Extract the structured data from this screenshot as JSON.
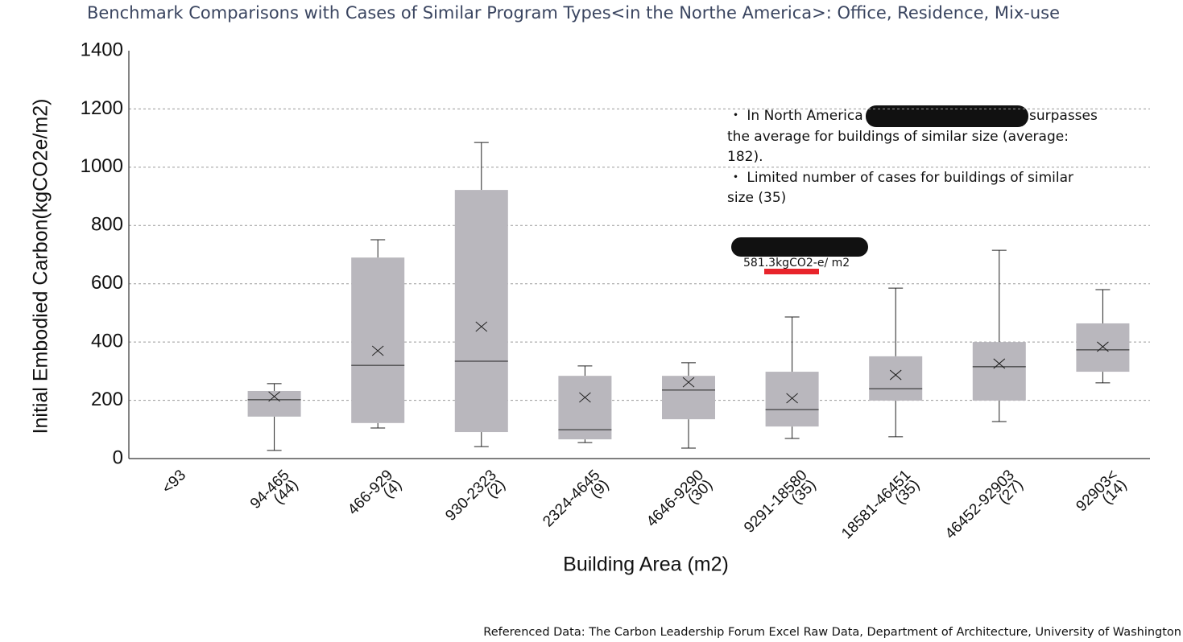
{
  "chart_data": {
    "type": "box",
    "title": "Benchmark Comparisons with Cases of Similar Program Types<in the Northe America>: Office, Residence, Mix-use",
    "x_label": "Building Area (m2)",
    "y_label": "Initial Embodied Carbon(kgCO2e/m2)",
    "categories": [
      "<93",
      "94-465",
      "466-929",
      "930-2323",
      "2324-4645",
      "4646-9290",
      "9291-18580",
      "18581-46451",
      "46452-92903",
      "92903<"
    ],
    "case_counts": [
      null,
      44,
      4,
      2,
      9,
      30,
      35,
      35,
      27,
      14
    ],
    "case_count_labels": [
      null,
      "(44)",
      "(4)",
      "(2)",
      "(9)",
      "(30)",
      "(35)",
      "(35)",
      "(27)",
      "(14)"
    ],
    "boxes": [
      null,
      {
        "min": 28,
        "q1": 144,
        "median": 202,
        "q3": 232,
        "max": 257,
        "mean": 213
      },
      {
        "min": 105,
        "q1": 122,
        "median": 320,
        "q3": 690,
        "max": 751,
        "mean": 370
      },
      {
        "min": 41,
        "q1": 91,
        "median": 334,
        "q3": 922,
        "max": 1085,
        "mean": 453
      },
      {
        "min": 55,
        "q1": 66,
        "median": 99,
        "q3": 284,
        "max": 318,
        "mean": 210
      },
      {
        "min": 36,
        "q1": 135,
        "median": 235,
        "q3": 284,
        "max": 329,
        "mean": 262
      },
      {
        "min": 69,
        "q1": 110,
        "median": 168,
        "q3": 298,
        "max": 486,
        "mean": 207
      },
      {
        "min": 75,
        "q1": 199,
        "median": 240,
        "q3": 351,
        "max": 585,
        "mean": 287
      },
      {
        "min": 127,
        "q1": 199,
        "median": 315,
        "q3": 400,
        "max": 715,
        "mean": 326
      },
      {
        "min": 260,
        "q1": 298,
        "median": 373,
        "q3": 464,
        "max": 580,
        "mean": 384
      }
    ],
    "color": "#b9b7bd",
    "ylim": [
      0,
      1400
    ],
    "yticks": [
      0,
      200,
      400,
      600,
      800,
      1000,
      1200,
      1400
    ],
    "grid": true,
    "notes": [
      "・ In North America",
      "surpasses",
      "the average for buildings of similar size (average:",
      "182).",
      "・ Limited number of cases for buildings of similar",
      "size (35)"
    ],
    "callout": "581.3kgCO2-e/ m2",
    "source": "Referenced Data: The Carbon Leadership Forum Excel Raw Data, Department of Architecture, University of Washington"
  }
}
